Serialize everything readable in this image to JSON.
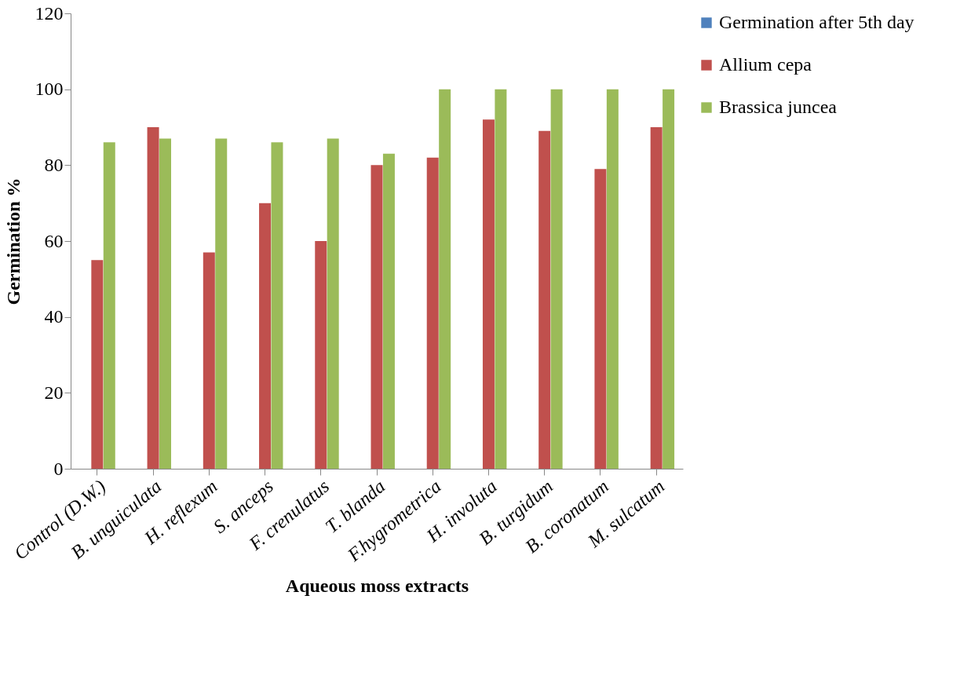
{
  "chart_data": {
    "type": "bar",
    "xlabel": "Aqueous moss extracts",
    "ylabel": "Germination %",
    "categories": [
      "Control (D.W.)",
      "B. unguiculata",
      "H. reflexum",
      "S. anceps",
      "F. crenulatus",
      "T. blanda",
      "F.hygrometrica",
      "H. involuta",
      "B. turgidum",
      "B. coronatum",
      "M. sulcatum"
    ],
    "series": [
      {
        "name": "Germination after 5th day",
        "color": "#4f81bd",
        "values": [
          null,
          null,
          null,
          null,
          null,
          null,
          null,
          null,
          null,
          null,
          null
        ]
      },
      {
        "name": "Allium cepa",
        "color": "#c0504d",
        "values": [
          55,
          90,
          57,
          70,
          60,
          80,
          82,
          92,
          89,
          79,
          90
        ]
      },
      {
        "name": "Brassica juncea",
        "color": "#9bbb59",
        "values": [
          86,
          87,
          87,
          86,
          87,
          83,
          100,
          100,
          100,
          100,
          100
        ]
      }
    ],
    "ylim": [
      0,
      120
    ],
    "yticks": [
      0,
      20,
      40,
      60,
      80,
      100,
      120
    ],
    "grid": false,
    "legend": "right"
  }
}
